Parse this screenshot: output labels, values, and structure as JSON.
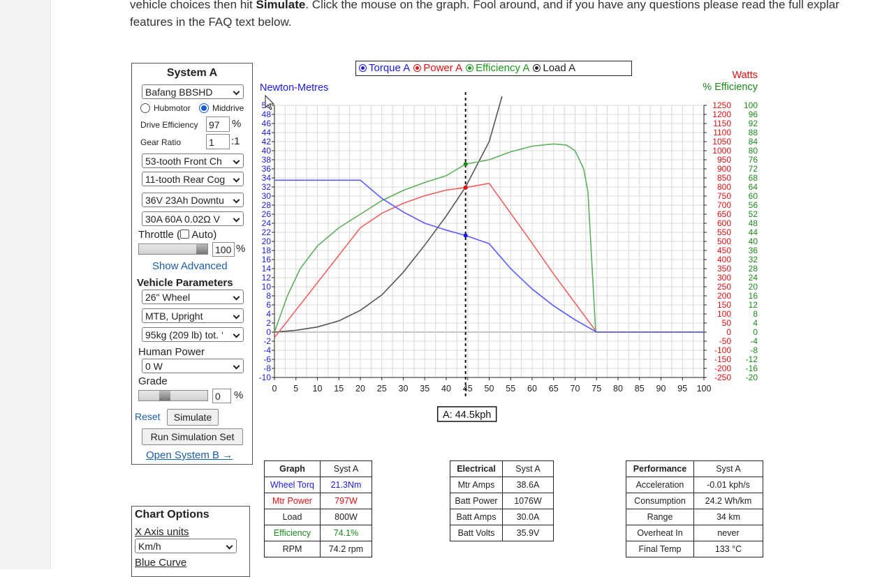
{
  "intro": {
    "line1_pre": "vehicle choices then hit ",
    "line1_bold": "Simulate",
    "line1_post": ". Click the mouse on the graph. Fool around, and if you have any questions please read the full explar",
    "line2": "features in the FAQ text below."
  },
  "system": {
    "title": "System A",
    "motor": "Bafang BBSHD",
    "motor_type_options": [
      "Hubmotor",
      "Middrive"
    ],
    "motor_type_selected": "Middrive",
    "drive_efficiency_label": "Drive Efficiency",
    "drive_efficiency": "97",
    "percent": "%",
    "gear_ratio_label": "Gear Ratio",
    "gear_ratio": "1",
    "gear_ratio_suffix": ":1",
    "front_chainring": "53-tooth Front Ch",
    "rear_cog": "11-tooth Rear Cog",
    "battery": "36V 23Ah Downtu",
    "controller": "30A 60A 0.02Ω V",
    "throttle_label_pre": "Throttle (",
    "throttle_label_post": " Auto)",
    "throttle_value": "100",
    "throttle_fraction": 1.0,
    "show_advanced": "Show Advanced",
    "vehicle_params_title": "Vehicle Parameters",
    "wheel": "26\"  Wheel",
    "frame": "MTB, Upright",
    "weight": "95kg (209 lb) tot. ‘",
    "human_power_label": "Human Power",
    "human_power": "0 W",
    "grade_label": "Grade",
    "grade_value": "0",
    "reset": "Reset",
    "simulate": "Simulate",
    "run_set": "Run Simulation Set",
    "open_b": "Open System B →"
  },
  "chart_options": {
    "title": "Chart Options",
    "x_axis_units_label": "X Axis units",
    "x_axis_units": "Km/h",
    "blue_curve_label": "Blue Curve"
  },
  "legend": [
    {
      "label": "Torque A",
      "color": "#1a1ae6"
    },
    {
      "label": "Power A",
      "color": "#e01010"
    },
    {
      "label": "Efficiency A",
      "color": "#1a9a1a"
    },
    {
      "label": "Load A",
      "color": "#222222"
    }
  ],
  "chart_data": {
    "type": "line",
    "xlabel": "",
    "left_axis_label": "Newton-Metres",
    "right_axis_label_1": "Watts",
    "right_axis_label_2": "% Efficiency",
    "xlim": [
      0,
      100
    ],
    "x_ticks": [
      0,
      5,
      10,
      15,
      20,
      25,
      30,
      35,
      40,
      45,
      50,
      55,
      60,
      65,
      70,
      75,
      80,
      85,
      90,
      95,
      100
    ],
    "nm_range": [
      -10,
      50
    ],
    "nm_ticks": [
      -10,
      -8,
      -6,
      -4,
      -2,
      0,
      2,
      4,
      6,
      8,
      10,
      12,
      14,
      16,
      18,
      20,
      22,
      24,
      26,
      28,
      30,
      32,
      34,
      36,
      38,
      40,
      42,
      44,
      46,
      48,
      50
    ],
    "watts_range": [
      -250,
      1250
    ],
    "watts_ticks": [
      1250,
      1200,
      1150,
      1100,
      1050,
      1000,
      950,
      900,
      850,
      800,
      750,
      700,
      650,
      600,
      550,
      500,
      450,
      400,
      350,
      300,
      250,
      200,
      150,
      100,
      50,
      0,
      -50,
      -100,
      -150,
      -200,
      -250
    ],
    "eff_range": [
      -20,
      100
    ],
    "eff_ticks": [
      100,
      96,
      92,
      88,
      84,
      80,
      76,
      72,
      68,
      64,
      60,
      56,
      52,
      48,
      44,
      40,
      36,
      32,
      28,
      24,
      20,
      16,
      12,
      8,
      4,
      0,
      -4,
      -8,
      -12,
      -16,
      -20
    ],
    "marker_x": 44.5,
    "marker_label": "A: 44.5kph",
    "series": [
      {
        "name": "Torque A",
        "unit": "Nm",
        "color": "#5a5aff",
        "points": [
          [
            0,
            33.5
          ],
          [
            20,
            33.5
          ],
          [
            25,
            29.5
          ],
          [
            30,
            26.5
          ],
          [
            35,
            24
          ],
          [
            40,
            22.5
          ],
          [
            44.5,
            21.3
          ],
          [
            50,
            19.5
          ],
          [
            55,
            14
          ],
          [
            60,
            9.5
          ],
          [
            65,
            5.8
          ],
          [
            70,
            2.7
          ],
          [
            75,
            0
          ],
          [
            100,
            0
          ]
        ]
      },
      {
        "name": "Power A",
        "unit": "W",
        "color": "#f06060",
        "points": [
          [
            0,
            -30
          ],
          [
            20,
            575
          ],
          [
            25,
            655
          ],
          [
            30,
            710
          ],
          [
            35,
            752
          ],
          [
            40,
            783
          ],
          [
            44.5,
            797
          ],
          [
            50,
            820
          ],
          [
            55,
            655
          ],
          [
            60,
            490
          ],
          [
            65,
            320
          ],
          [
            70,
            160
          ],
          [
            75,
            0
          ],
          [
            100,
            0
          ]
        ]
      },
      {
        "name": "Efficiency A",
        "unit": "%",
        "color": "#5cb05c",
        "points": [
          [
            0,
            0
          ],
          [
            3,
            16
          ],
          [
            6,
            28
          ],
          [
            10,
            38
          ],
          [
            15,
            46
          ],
          [
            20,
            52
          ],
          [
            25,
            58
          ],
          [
            30,
            62.5
          ],
          [
            35,
            66
          ],
          [
            40,
            69
          ],
          [
            44.5,
            74.1
          ],
          [
            50,
            76
          ],
          [
            55,
            79.5
          ],
          [
            60,
            82
          ],
          [
            65,
            83
          ],
          [
            68,
            82.5
          ],
          [
            70,
            80
          ],
          [
            72,
            72
          ],
          [
            73,
            62
          ],
          [
            74.8,
            0
          ],
          [
            100,
            0
          ]
        ]
      },
      {
        "name": "Load A",
        "unit": "W",
        "color": "#555555",
        "points": [
          [
            0,
            0
          ],
          [
            5,
            10
          ],
          [
            10,
            28
          ],
          [
            15,
            62
          ],
          [
            20,
            120
          ],
          [
            25,
            205
          ],
          [
            30,
            330
          ],
          [
            35,
            480
          ],
          [
            40,
            640
          ],
          [
            44.5,
            800
          ],
          [
            50,
            1050
          ],
          [
            53,
            1300
          ]
        ]
      }
    ]
  },
  "graph_table": {
    "headers": [
      "Graph",
      "Syst A"
    ],
    "rows": [
      {
        "label": "Wheel Torq",
        "value": "21.3Nm",
        "color": "#1a1ae6"
      },
      {
        "label": "Mtr Power",
        "value": "797W",
        "color": "#e01010"
      },
      {
        "label": "Load",
        "value": "800W",
        "color": "#222222"
      },
      {
        "label": "Efficiency",
        "value": "74.1%",
        "color": "#1a8a1a"
      },
      {
        "label": "RPM",
        "value": "74.2 rpm",
        "color": "#222222"
      }
    ]
  },
  "electrical_table": {
    "headers": [
      "Electrical",
      "Syst A"
    ],
    "rows": [
      {
        "label": "Mtr Amps",
        "value": "38.6A"
      },
      {
        "label": "Batt Power",
        "value": "1076W"
      },
      {
        "label": "Batt Amps",
        "value": "30.0A"
      },
      {
        "label": "Batt Volts",
        "value": "35.9V"
      }
    ]
  },
  "performance_table": {
    "headers": [
      "Performance",
      "Syst A"
    ],
    "rows": [
      {
        "label": "Acceleration",
        "value": "-0.01 kph/s"
      },
      {
        "label": "Consumption",
        "value": "24.2 Wh/km"
      },
      {
        "label": "Range",
        "value": "34 km"
      },
      {
        "label": "Overheat In",
        "value": "never"
      },
      {
        "label": "Final Temp",
        "value": "133 °C"
      }
    ]
  }
}
